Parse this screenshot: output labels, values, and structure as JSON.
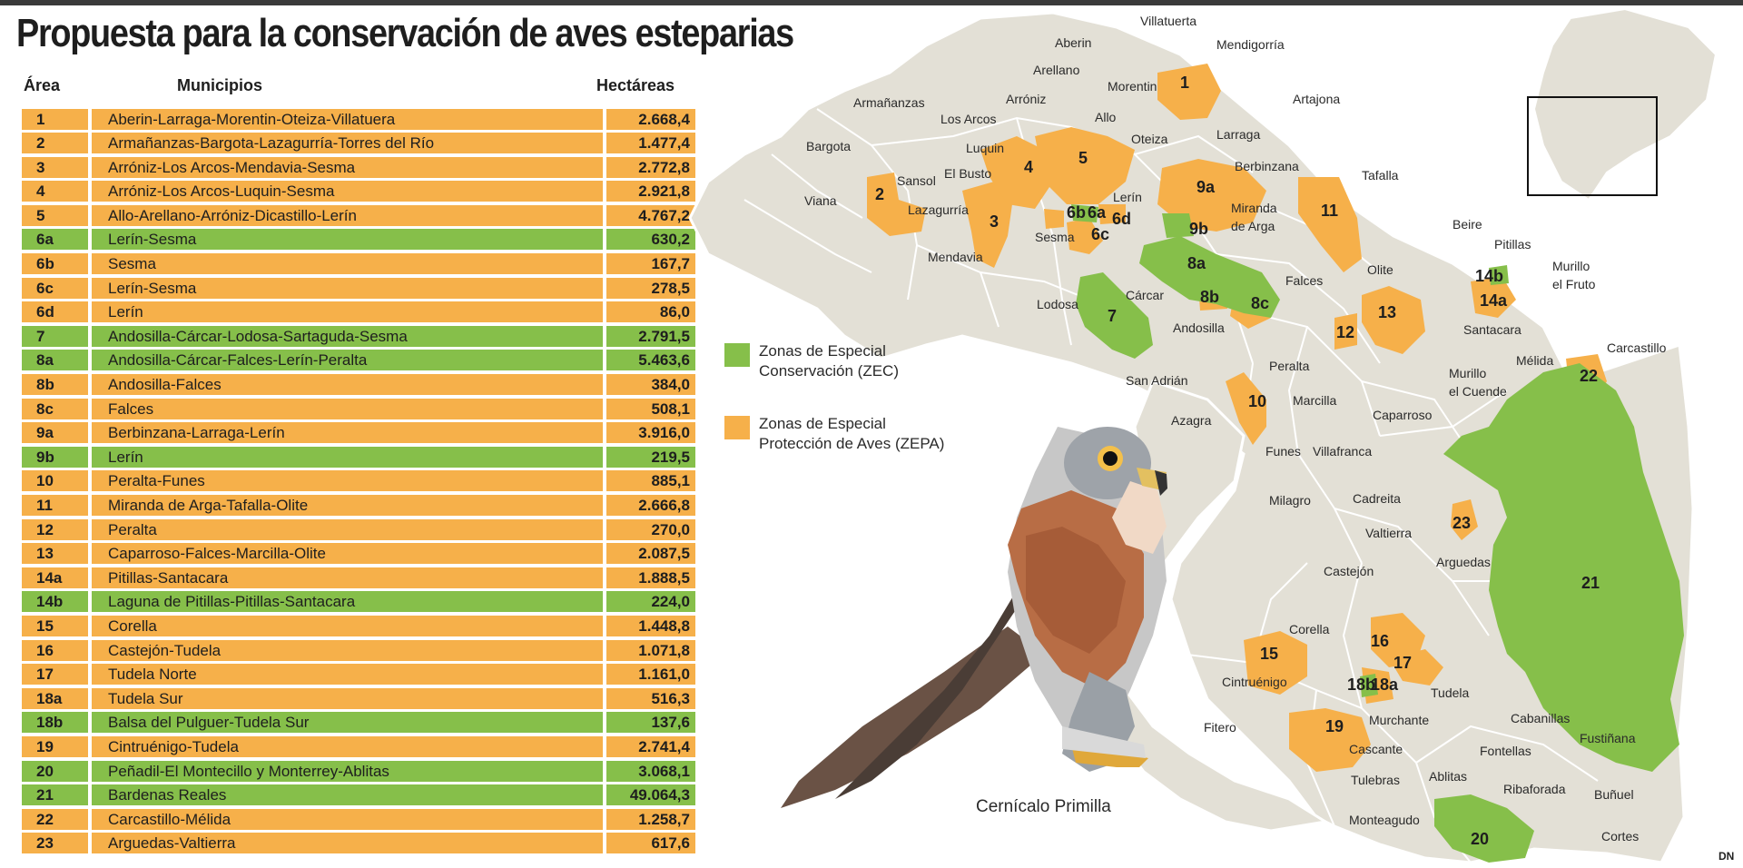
{
  "title": "Propuesta para la conservación de aves esteparias",
  "headers": {
    "area": "Área",
    "municipios": "Municipios",
    "hectareas": "Hectáreas"
  },
  "colors": {
    "zepa": "#f6b04a",
    "zec": "#86bf4a",
    "land": "#e3e0d6",
    "border": "#ffffff"
  },
  "rows": [
    {
      "area": "1",
      "municipios": "Aberin-Larraga-Morentin-Oteiza-Villatuera",
      "hectareas": "2.668,4",
      "zone": "zepa"
    },
    {
      "area": "2",
      "municipios": "Armañanzas-Bargota-Lazagurría-Torres del Río",
      "hectareas": "1.477,4",
      "zone": "zepa"
    },
    {
      "area": "3",
      "municipios": "Arróniz-Los Arcos-Mendavia-Sesma",
      "hectareas": "2.772,8",
      "zone": "zepa"
    },
    {
      "area": "4",
      "municipios": "Arróniz-Los Arcos-Luquin-Sesma",
      "hectareas": "2.921,8",
      "zone": "zepa"
    },
    {
      "area": "5",
      "municipios": "Allo-Arellano-Arróniz-Dicastillo-Lerín",
      "hectareas": "4.767,2",
      "zone": "zepa"
    },
    {
      "area": "6a",
      "municipios": "Lerín-Sesma",
      "hectareas": "630,2",
      "zone": "zec"
    },
    {
      "area": "6b",
      "municipios": "Sesma",
      "hectareas": "167,7",
      "zone": "zepa"
    },
    {
      "area": "6c",
      "municipios": "Lerín-Sesma",
      "hectareas": "278,5",
      "zone": "zepa"
    },
    {
      "area": "6d",
      "municipios": "Lerín",
      "hectareas": "86,0",
      "zone": "zepa"
    },
    {
      "area": "7",
      "municipios": "Andosilla-Cárcar-Lodosa-Sartaguda-Sesma",
      "hectareas": "2.791,5",
      "zone": "zec"
    },
    {
      "area": "8a",
      "municipios": "Andosilla-Cárcar-Falces-Lerín-Peralta",
      "hectareas": "5.463,6",
      "zone": "zec"
    },
    {
      "area": "8b",
      "municipios": "Andosilla-Falces",
      "hectareas": "384,0",
      "zone": "zepa"
    },
    {
      "area": "8c",
      "municipios": "Falces",
      "hectareas": "508,1",
      "zone": "zepa"
    },
    {
      "area": "9a",
      "municipios": "Berbinzana-Larraga-Lerín",
      "hectareas": "3.916,0",
      "zone": "zepa"
    },
    {
      "area": "9b",
      "municipios": "Lerín",
      "hectareas": "219,5",
      "zone": "zec"
    },
    {
      "area": "10",
      "municipios": "Peralta-Funes",
      "hectareas": "885,1",
      "zone": "zepa"
    },
    {
      "area": "11",
      "municipios": "Miranda de Arga-Tafalla-Olite",
      "hectareas": "2.666,8",
      "zone": "zepa"
    },
    {
      "area": "12",
      "municipios": "Peralta",
      "hectareas": "270,0",
      "zone": "zepa"
    },
    {
      "area": "13",
      "municipios": "Caparroso-Falces-Marcilla-Olite",
      "hectareas": "2.087,5",
      "zone": "zepa"
    },
    {
      "area": "14a",
      "municipios": "Pitillas-Santacara",
      "hectareas": "1.888,5",
      "zone": "zepa"
    },
    {
      "area": "14b",
      "municipios": "Laguna de Pitillas-Pitillas-Santacara",
      "hectareas": "224,0",
      "zone": "zec"
    },
    {
      "area": "15",
      "municipios": "Corella",
      "hectareas": "1.448,8",
      "zone": "zepa"
    },
    {
      "area": "16",
      "municipios": "Castejón-Tudela",
      "hectareas": "1.071,8",
      "zone": "zepa"
    },
    {
      "area": "17",
      "municipios": "Tudela Norte",
      "hectareas": "1.161,0",
      "zone": "zepa"
    },
    {
      "area": "18a",
      "municipios": "Tudela Sur",
      "hectareas": "516,3",
      "zone": "zepa"
    },
    {
      "area": "18b",
      "municipios": "Balsa del Pulguer-Tudela Sur",
      "hectareas": "137,6",
      "zone": "zec"
    },
    {
      "area": "19",
      "municipios": "Cintruénigo-Tudela",
      "hectareas": "2.741,4",
      "zone": "zepa"
    },
    {
      "area": "20",
      "municipios": "Peñadil-El Montecillo y Monterrey-Ablitas",
      "hectareas": "3.068,1",
      "zone": "zec"
    },
    {
      "area": "21",
      "municipios": "Bardenas Reales",
      "hectareas": "49.064,3",
      "zone": "zec"
    },
    {
      "area": "22",
      "municipios": "Carcastillo-Mélida",
      "hectareas": "1.258,7",
      "zone": "zepa"
    },
    {
      "area": "23",
      "municipios": "Arguedas-Valtierra",
      "hectareas": "617,6",
      "zone": "zepa"
    }
  ],
  "legend": {
    "zec_line1": "Zonas de Especial",
    "zec_line2": "Conservación (ZEC)",
    "zepa_line1": "Zonas de Especial",
    "zepa_line2": "Protección de Aves (ZEPA)"
  },
  "bird_caption": "Cernícalo Primilla",
  "credit": "DN",
  "towns": [
    "Villatuerta",
    "Aberin",
    "Mendigorría",
    "Arellano",
    "Morentin",
    "Armañanzas",
    "Arróniz",
    "Artajona",
    "Los Arcos",
    "Allo",
    "Bargota",
    "Luquin",
    "Oteiza",
    "Larraga",
    "Sansol",
    "El Busto",
    "Berbinzana",
    "Tafalla",
    "Viana",
    "Lazagurría",
    "Lerín",
    "Miranda de Arga",
    "Sesma",
    "Mendavia",
    "Beire",
    "Pitillas",
    "Falces",
    "Olite",
    "Murillo el Fruto",
    "Lodosa",
    "Cárcar",
    "Andosilla",
    "Santacara",
    "Carcastillo",
    "Mélida",
    "Peralta",
    "Murillo el Cuende",
    "San Adrián",
    "Marcilla",
    "Caparroso",
    "Azagra",
    "Funes",
    "Villafranca",
    "Milagro",
    "Cadreita",
    "Valtierra",
    "Arguedas",
    "Castejón",
    "Corella",
    "Cintruénigo",
    "Tudela",
    "Murchante",
    "Fitero",
    "Cascante",
    "Cabanillas",
    "Fontellas",
    "Fustiñana",
    "Tulebras",
    "Ablitas",
    "Ribaforada",
    "Buñuel",
    "Monteagudo",
    "Cortes"
  ],
  "zone_labels": [
    "1",
    "2",
    "3",
    "4",
    "5",
    "6b",
    "6a",
    "6d",
    "6c",
    "9a",
    "9b",
    "8a",
    "8b",
    "8c",
    "7",
    "11",
    "12",
    "13",
    "14b",
    "14a",
    "10",
    "22",
    "23",
    "21",
    "15",
    "16",
    "17",
    "18b",
    "18a",
    "19",
    "20"
  ]
}
